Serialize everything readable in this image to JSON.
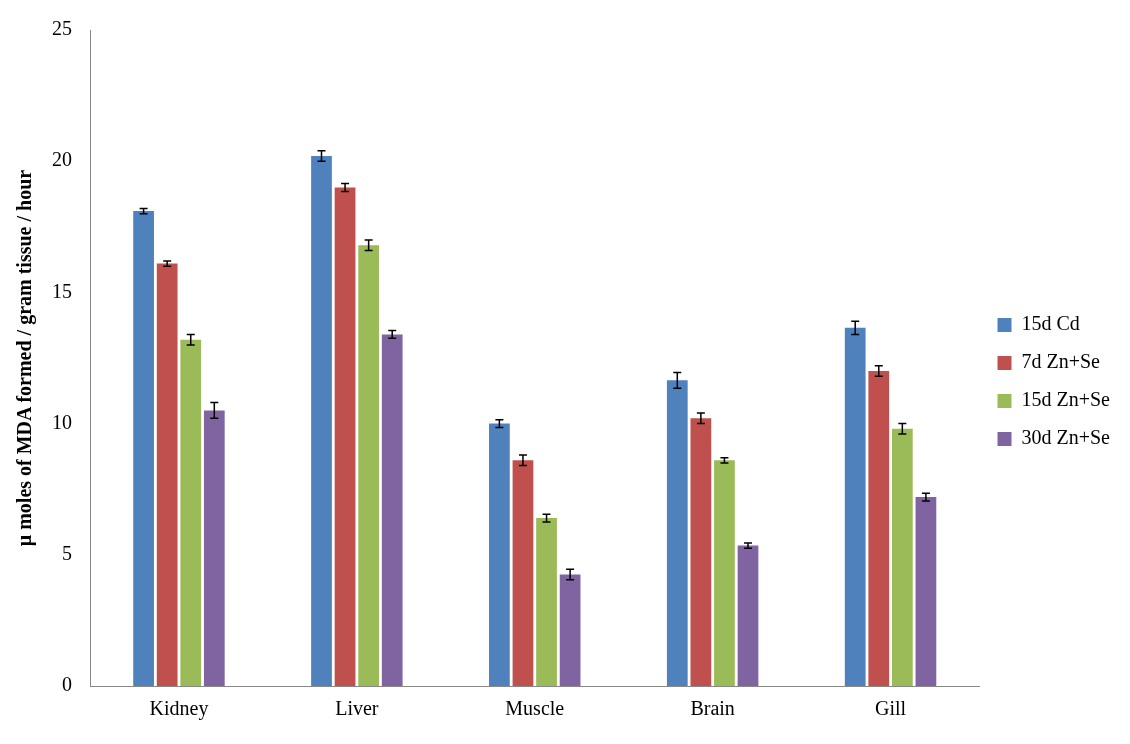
{
  "chart_data": {
    "type": "bar",
    "ylabel": "μ moles of MDA formed / gram tissue / hour",
    "categories": [
      "Kidney",
      "Liver",
      "Muscle",
      "Brain",
      "Gill"
    ],
    "series": [
      {
        "name": "15d Cd",
        "color": "#4f81bd",
        "values": [
          18.1,
          20.2,
          10.0,
          11.65,
          13.65
        ],
        "errors": [
          0.1,
          0.2,
          0.15,
          0.3,
          0.25
        ]
      },
      {
        "name": "7d Zn+Se",
        "color": "#c0504d",
        "values": [
          16.1,
          19.0,
          8.6,
          10.2,
          12.0
        ],
        "errors": [
          0.1,
          0.15,
          0.2,
          0.2,
          0.2
        ]
      },
      {
        "name": "15d Zn+Se",
        "color": "#9bbb59",
        "values": [
          13.2,
          16.8,
          6.4,
          8.6,
          9.8
        ],
        "errors": [
          0.2,
          0.2,
          0.15,
          0.1,
          0.2
        ]
      },
      {
        "name": "30d Zn+Se",
        "color": "#8064a2",
        "values": [
          10.5,
          13.4,
          4.25,
          5.35,
          7.2
        ],
        "errors": [
          0.3,
          0.15,
          0.2,
          0.1,
          0.15
        ]
      }
    ],
    "ylim": [
      0,
      25
    ],
    "yticks": [
      0,
      5,
      10,
      15,
      20,
      25
    ],
    "grid": false,
    "legend": "right"
  }
}
